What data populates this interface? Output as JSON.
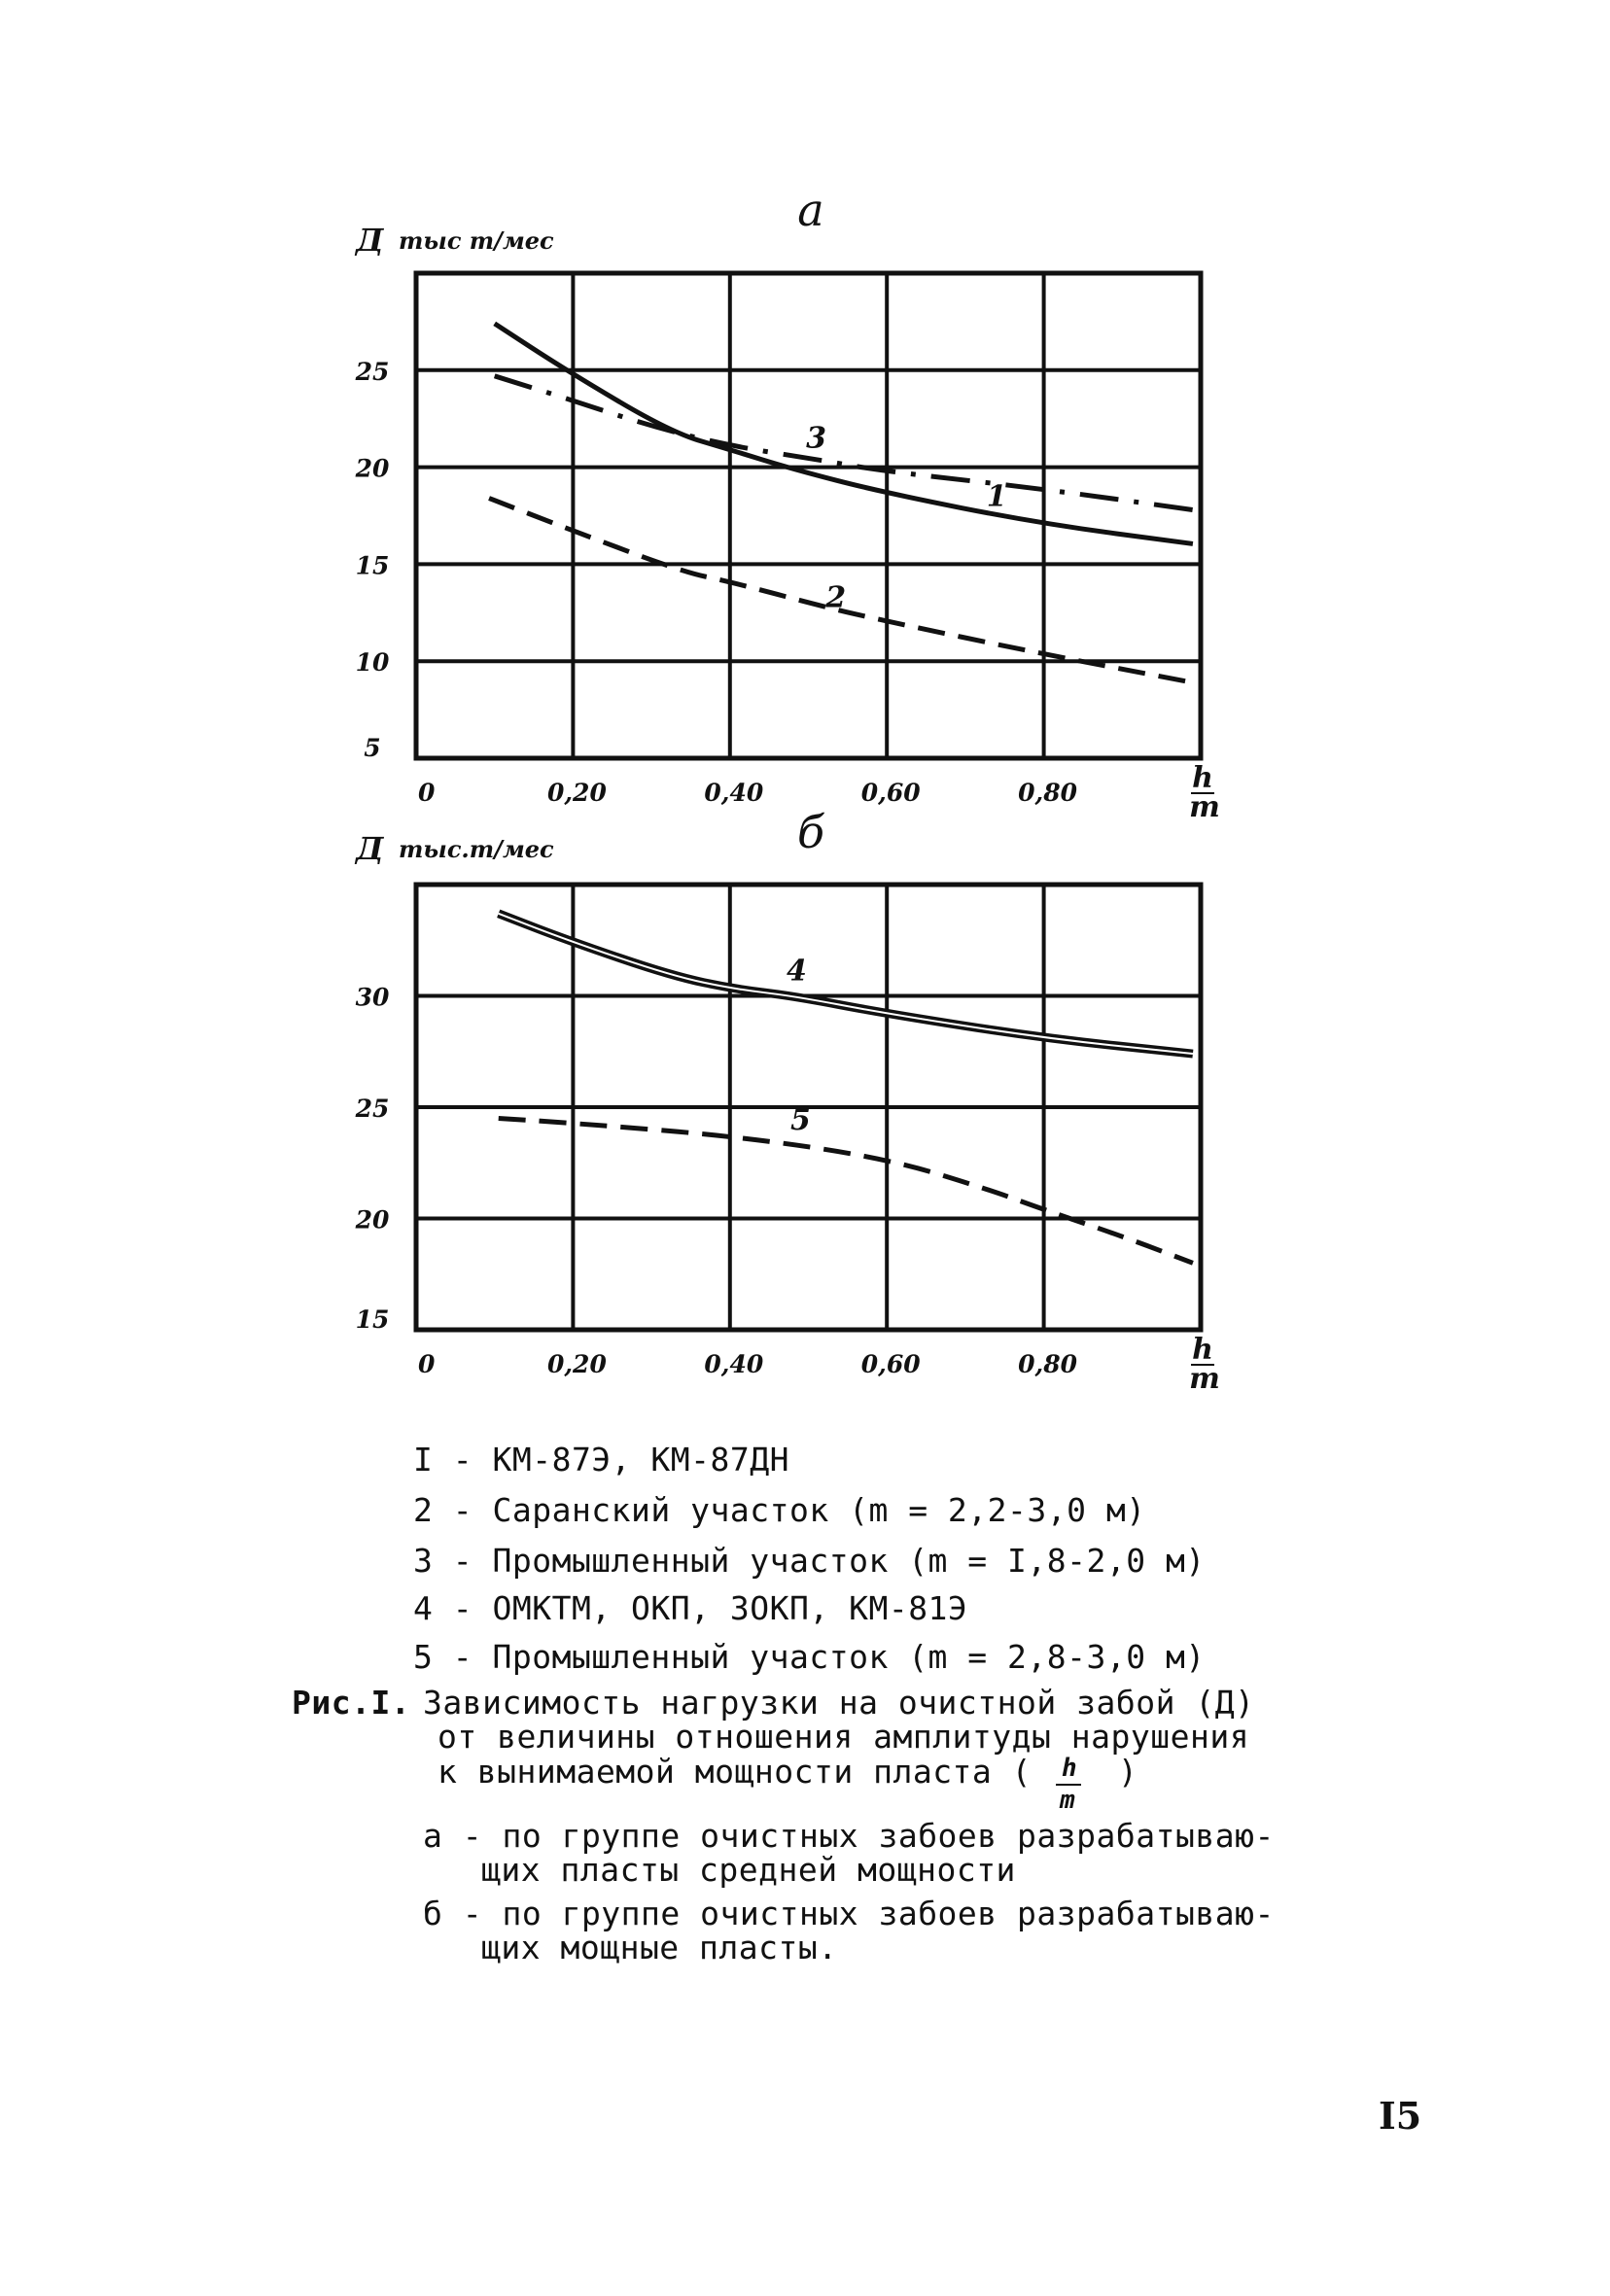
{
  "chart_data": [
    {
      "type": "line",
      "title": "а",
      "ylabel_symbol": "Д",
      "ylabel": "тыс т/мес",
      "xlabel_num": "h",
      "xlabel_den": "m",
      "xlim": [
        0,
        1.0
      ],
      "ylim": [
        5,
        30
      ],
      "grid": true,
      "x_ticks": [
        0,
        0.2,
        0.4,
        0.6,
        0.8
      ],
      "x_tick_labels": [
        "0",
        "0,20",
        "0,40",
        "0,60",
        "0,80"
      ],
      "y_ticks": [
        5,
        10,
        15,
        20,
        25
      ],
      "y_tick_labels": [
        "5",
        "10",
        "15",
        "20",
        "25"
      ],
      "series": [
        {
          "label": "1",
          "style": "solid",
          "label_at": [
            0.74,
            18.0
          ],
          "x": [
            0.1,
            0.195,
            0.325,
            0.4,
            0.48,
            0.595,
            0.795,
            0.99
          ],
          "y": [
            27.4,
            24.9,
            21.8,
            20.9,
            19.9,
            18.7,
            17.1,
            16.05
          ]
        },
        {
          "label": "2",
          "style": "dashed",
          "label_at": [
            0.535,
            12.8
          ],
          "x": [
            0.093,
            0.195,
            0.34,
            0.4,
            0.52,
            0.595,
            0.795,
            0.99
          ],
          "y": [
            18.4,
            16.8,
            14.6,
            14.1,
            12.8,
            12.1,
            10.4,
            8.9
          ]
        },
        {
          "label": "3",
          "style": "dash-dot",
          "label_at": [
            0.51,
            21.0
          ],
          "x": [
            0.1,
            0.195,
            0.3,
            0.4,
            0.51,
            0.595,
            0.795,
            0.99
          ],
          "y": [
            24.7,
            23.5,
            22.1,
            21.1,
            20.4,
            19.8,
            18.9,
            17.8
          ]
        }
      ]
    },
    {
      "type": "line",
      "title": "б",
      "ylabel_symbol": "Д",
      "ylabel": "тыс.т/мес",
      "xlabel_num": "h",
      "xlabel_den": "m",
      "xlim": [
        0,
        1.0
      ],
      "ylim": [
        15,
        35
      ],
      "grid": true,
      "x_ticks": [
        0,
        0.2,
        0.4,
        0.6,
        0.8
      ],
      "x_tick_labels": [
        "0",
        "0,20",
        "0,40",
        "0,60",
        "0,80"
      ],
      "y_ticks": [
        15,
        20,
        25,
        30
      ],
      "y_tick_labels": [
        "15",
        "20",
        "25",
        "30"
      ],
      "series": [
        {
          "label": "4",
          "style": "double",
          "label_at": [
            0.485,
            30.7
          ],
          "x": [
            0.105,
            0.193,
            0.326,
            0.407,
            0.48,
            0.6,
            0.8,
            0.99
          ],
          "y": [
            33.7,
            32.5,
            30.9,
            30.3,
            30.0,
            29.2,
            28.1,
            27.4
          ]
        },
        {
          "label": "5",
          "style": "dashed",
          "label_at": [
            0.49,
            24.0
          ],
          "x": [
            0.105,
            0.193,
            0.407,
            0.6,
            0.73,
            0.8,
            0.9,
            0.99
          ],
          "y": [
            24.5,
            24.3,
            23.7,
            22.7,
            21.3,
            20.4,
            19.2,
            18.0
          ]
        }
      ]
    }
  ],
  "legend": [
    "I - КМ-87Э, КМ-87ДН",
    "2 - Саранский участок (m = 2,2-3,0 м)",
    "3 - Промышленный участок (m = I,8-2,0 м)",
    "4 - ОМКТМ, ОКП, ЗОКП, КМ-81Э",
    "5 - Промышленный участок (m = 2,8-3,0 м)"
  ],
  "caption": {
    "prefix": "Рис.I.",
    "lines": [
      "Зависимость нагрузки на очистной забой (Д)",
      "от величины отношения амплитуды нарушения",
      "к вынимаемой мощности пласта ("
    ],
    "fraction_num": "h",
    "fraction_den": "m",
    "fraction_close": ")",
    "notes": [
      {
        "first": "а - по группе очистных забоев разрабатываю-",
        "second": "щих пласты средней мощности"
      },
      {
        "first": "б - по группе очистных забоев разрабатываю-",
        "second": "щих мощные пласты."
      }
    ]
  },
  "page_number": "I5"
}
